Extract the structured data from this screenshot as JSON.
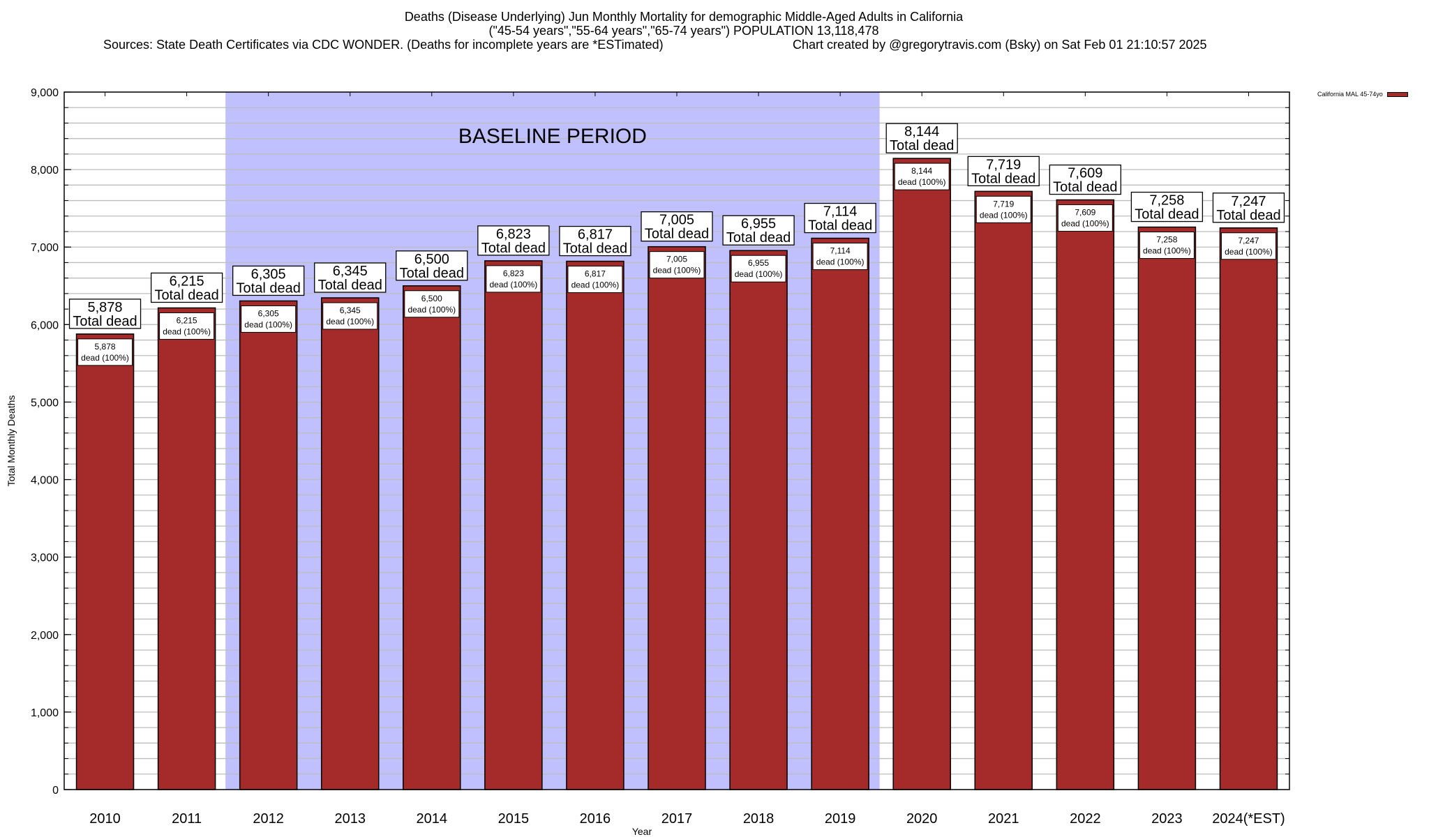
{
  "chart_data": {
    "type": "bar",
    "title": "Deaths (Disease Underlying) Jun Monthly Mortality for demographic Middle-Aged Adults in California",
    "subtitle": "(\"45-54 years\",\"55-64 years\",\"65-74 years\") POPULATION 13,118,478",
    "sources": "Sources: State Death Certificates via CDC WONDER. (Deaths for incomplete years are *ESTimated)",
    "created": "Chart created by @gregorytravis.com (Bsky) on Sat Feb 01 21:10:57 2025",
    "xlabel": "Year",
    "ylabel": "Total Monthly Deaths",
    "ylim": [
      0,
      9000
    ],
    "yticks": [
      0,
      1000,
      2000,
      3000,
      4000,
      5000,
      6000,
      7000,
      8000,
      9000
    ],
    "ytick_labels": [
      "0",
      "1,000",
      "2,000",
      "3,000",
      "4,000",
      "5,000",
      "6,000",
      "7,000",
      "8,000",
      "9,000"
    ],
    "grid": true,
    "categories": [
      "2010",
      "2011",
      "2012",
      "2013",
      "2014",
      "2015",
      "2016",
      "2017",
      "2018",
      "2019",
      "2020",
      "2021",
      "2022",
      "2023",
      "2024(*EST)"
    ],
    "series": [
      {
        "name": "California MAL 45-74yo",
        "color": "#a52a2a",
        "values": [
          5878,
          6215,
          6305,
          6345,
          6500,
          6823,
          6817,
          7005,
          6955,
          7114,
          8144,
          7719,
          7609,
          7258,
          7247
        ]
      }
    ],
    "value_labels": [
      "5,878",
      "6,215",
      "6,305",
      "6,345",
      "6,500",
      "6,823",
      "6,817",
      "7,005",
      "6,955",
      "7,114",
      "8,144",
      "7,719",
      "7,609",
      "7,258",
      "7,247"
    ],
    "total_label_suffix": "Total dead",
    "inner_label_suffix": "dead (100%)",
    "annotation": {
      "text": "BASELINE PERIOD",
      "start_category": "2012",
      "end_category": "2019",
      "color": "#c0c0ff"
    },
    "legend": {
      "position": "top-right",
      "label": "California MAL 45-74yo"
    }
  }
}
